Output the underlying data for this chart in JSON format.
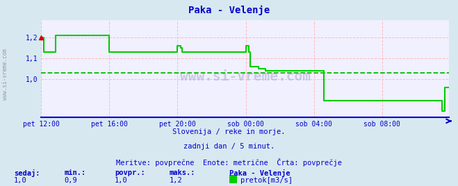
{
  "title": "Paka - Velenje",
  "title_color": "#0000cc",
  "outer_bg_color": "#d8e8f0",
  "plot_bg_color": "#f0f0ff",
  "grid_color": "#ffbbbb",
  "avg_line_color": "#00bb00",
  "avg_line_value": 1.03,
  "line_color": "#00cc00",
  "axis_color": "#0000cc",
  "tick_color": "#0000cc",
  "xlim": [
    0,
    287
  ],
  "ylim": [
    0.82,
    1.28
  ],
  "yticks": [
    1.0,
    1.1,
    1.2
  ],
  "ytick_labels": [
    "1,0",
    "1,1",
    "1,2"
  ],
  "xtick_positions": [
    0,
    48,
    96,
    144,
    192,
    240
  ],
  "xtick_labels": [
    "pet 12:00",
    "pet 16:00",
    "pet 20:00",
    "sob 00:00",
    "sob 04:00",
    "sob 08:00"
  ],
  "footnote1": "Slovenija / reke in morje.",
  "footnote2": "zadnji dan / 5 minut.",
  "footnote3": "Meritve: povprečne  Enote: metrične  Črta: povprečje",
  "legend_station": "Paka - Velenje",
  "legend_label": "pretok[m3/s]",
  "legend_color": "#00cc00",
  "stat_labels": [
    "sedaj:",
    "min.:",
    "povpr.:",
    "maks.:"
  ],
  "stat_values": [
    "1,0",
    "0,9",
    "1,0",
    "1,2"
  ],
  "stat_color": "#0000cc",
  "left_watermark": "www.si-vreme.com",
  "data_y": [
    1.2,
    1.2,
    1.13,
    1.13,
    1.13,
    1.13,
    1.13,
    1.13,
    1.13,
    1.13,
    1.21,
    1.21,
    1.21,
    1.21,
    1.21,
    1.21,
    1.21,
    1.21,
    1.21,
    1.21,
    1.21,
    1.21,
    1.21,
    1.21,
    1.21,
    1.21,
    1.21,
    1.21,
    1.21,
    1.21,
    1.21,
    1.21,
    1.21,
    1.21,
    1.21,
    1.21,
    1.21,
    1.21,
    1.21,
    1.21,
    1.21,
    1.21,
    1.21,
    1.21,
    1.21,
    1.21,
    1.21,
    1.21,
    1.13,
    1.13,
    1.13,
    1.13,
    1.13,
    1.13,
    1.13,
    1.13,
    1.13,
    1.13,
    1.13,
    1.13,
    1.13,
    1.13,
    1.13,
    1.13,
    1.13,
    1.13,
    1.13,
    1.13,
    1.13,
    1.13,
    1.13,
    1.13,
    1.13,
    1.13,
    1.13,
    1.13,
    1.13,
    1.13,
    1.13,
    1.13,
    1.13,
    1.13,
    1.13,
    1.13,
    1.13,
    1.13,
    1.13,
    1.13,
    1.13,
    1.13,
    1.13,
    1.13,
    1.13,
    1.13,
    1.13,
    1.13,
    1.16,
    1.16,
    1.15,
    1.13,
    1.13,
    1.13,
    1.13,
    1.13,
    1.13,
    1.13,
    1.13,
    1.13,
    1.13,
    1.13,
    1.13,
    1.13,
    1.13,
    1.13,
    1.13,
    1.13,
    1.13,
    1.13,
    1.13,
    1.13,
    1.13,
    1.13,
    1.13,
    1.13,
    1.13,
    1.13,
    1.13,
    1.13,
    1.13,
    1.13,
    1.13,
    1.13,
    1.13,
    1.13,
    1.13,
    1.13,
    1.13,
    1.13,
    1.13,
    1.13,
    1.13,
    1.13,
    1.13,
    1.13,
    1.16,
    1.16,
    1.13,
    1.06,
    1.06,
    1.06,
    1.06,
    1.06,
    1.06,
    1.05,
    1.05,
    1.05,
    1.05,
    1.05,
    1.04,
    1.04,
    1.04,
    1.04,
    1.04,
    1.04,
    1.04,
    1.04,
    1.04,
    1.04,
    1.04,
    1.04,
    1.04,
    1.04,
    1.04,
    1.04,
    1.04,
    1.04,
    1.04,
    1.04,
    1.04,
    1.04,
    1.04,
    1.04,
    1.04,
    1.04,
    1.04,
    1.04,
    1.04,
    1.04,
    1.04,
    1.04,
    1.04,
    1.04,
    1.04,
    1.04,
    1.04,
    1.04,
    1.04,
    1.04,
    1.04,
    0.9,
    0.9,
    0.9,
    0.9,
    0.9,
    0.9,
    0.9,
    0.9,
    0.9,
    0.9,
    0.9,
    0.9,
    0.9,
    0.9,
    0.9,
    0.9,
    0.9,
    0.9,
    0.9,
    0.9,
    0.9,
    0.9,
    0.9,
    0.9,
    0.9,
    0.9,
    0.9,
    0.9,
    0.9,
    0.9,
    0.9,
    0.9,
    0.9,
    0.9,
    0.9,
    0.9,
    0.9,
    0.9,
    0.9,
    0.9,
    0.9,
    0.9,
    0.9,
    0.9,
    0.9,
    0.9,
    0.9,
    0.9,
    0.9,
    0.9,
    0.9,
    0.9,
    0.9,
    0.9,
    0.9,
    0.9,
    0.9,
    0.9,
    0.9,
    0.9,
    0.9,
    0.9,
    0.9,
    0.9,
    0.9,
    0.9,
    0.9,
    0.9,
    0.9,
    0.9,
    0.9,
    0.9,
    0.9,
    0.9,
    0.9,
    0.9,
    0.9,
    0.9,
    0.9,
    0.9,
    0.9,
    0.9,
    0.9,
    0.85,
    0.85,
    0.96,
    0.96,
    0.96,
    0.96
  ],
  "marker_color": "#cc0000"
}
